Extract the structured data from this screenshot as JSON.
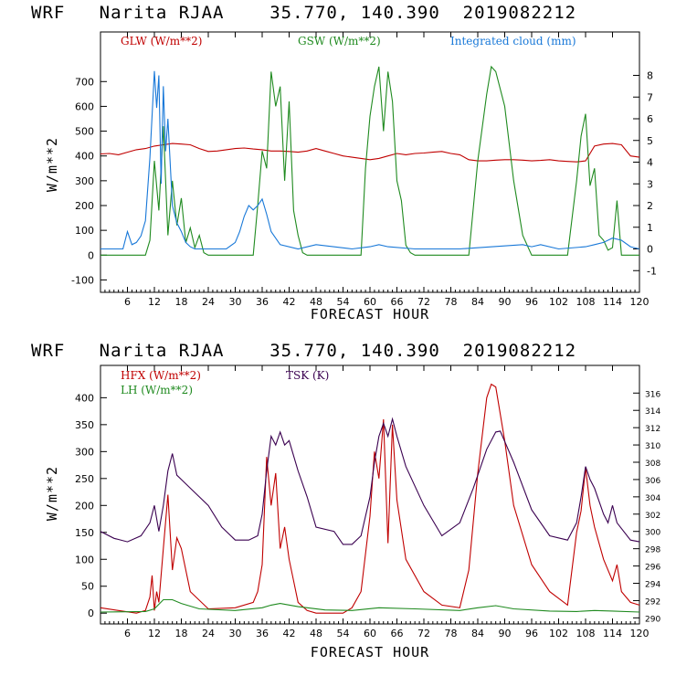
{
  "chart_data": [
    {
      "type": "line",
      "title": "WRF   Narita RJAA    35.770, 140.390  2019082212",
      "xlabel": "FORECAST HOUR",
      "ylabel": "W/m**2",
      "xlim": [
        0,
        120
      ],
      "ylim": [
        -150,
        900
      ],
      "y2lim": [
        -2,
        10
      ],
      "x_ticks": [
        "6",
        "12",
        "18",
        "24",
        "30",
        "36",
        "42",
        "48",
        "54",
        "60",
        "66",
        "72",
        "78",
        "84",
        "90",
        "96",
        "102",
        "108",
        "114",
        "120"
      ],
      "y_ticks": [
        "-100",
        "0",
        "100",
        "200",
        "300",
        "400",
        "500",
        "600",
        "700"
      ],
      "y2_ticks": [
        "-1",
        "0",
        "1",
        "2",
        "3",
        "4",
        "5",
        "6",
        "7",
        "8"
      ],
      "legend_position": "top",
      "colors": {
        "GLW": "#c00000",
        "GSW": "#1f8a1f",
        "CLOUD": "#1878d8"
      },
      "series": [
        {
          "name": "GLW (W/m**2)",
          "axis": "left",
          "color": "#c00000",
          "x": [
            0,
            2,
            4,
            6,
            8,
            10,
            12,
            14,
            16,
            18,
            20,
            22,
            24,
            26,
            28,
            30,
            32,
            34,
            36,
            38,
            40,
            42,
            44,
            46,
            48,
            50,
            52,
            54,
            56,
            58,
            60,
            62,
            64,
            66,
            68,
            70,
            72,
            74,
            76,
            78,
            80,
            82,
            84,
            86,
            88,
            90,
            92,
            94,
            96,
            98,
            100,
            102,
            104,
            106,
            108,
            110,
            112,
            114,
            116,
            118,
            120
          ],
          "values": [
            408,
            410,
            405,
            415,
            425,
            430,
            440,
            445,
            450,
            448,
            445,
            430,
            418,
            420,
            425,
            430,
            432,
            428,
            425,
            420,
            420,
            418,
            415,
            420,
            430,
            420,
            410,
            400,
            395,
            390,
            385,
            390,
            400,
            410,
            405,
            410,
            412,
            415,
            418,
            410,
            405,
            385,
            380,
            380,
            383,
            385,
            385,
            383,
            380,
            382,
            385,
            380,
            378,
            376,
            380,
            440,
            448,
            450,
            445,
            400,
            395
          ]
        },
        {
          "name": "GSW (W/m**2)",
          "axis": "left",
          "color": "#1f8a1f",
          "x": [
            0,
            10,
            11,
            12,
            13,
            14,
            15,
            16,
            17,
            18,
            19,
            20,
            21,
            22,
            23,
            24,
            34,
            35,
            36,
            37,
            38,
            39,
            40,
            41,
            42,
            43,
            44,
            45,
            46,
            58,
            59,
            60,
            61,
            62,
            63,
            64,
            65,
            66,
            67,
            68,
            69,
            70,
            82,
            84,
            86,
            87,
            88,
            90,
            92,
            94,
            96,
            104,
            106,
            107,
            108,
            109,
            110,
            111,
            112,
            113,
            114,
            115,
            116,
            120
          ],
          "values": [
            0,
            0,
            60,
            380,
            180,
            520,
            80,
            300,
            120,
            230,
            50,
            110,
            30,
            80,
            10,
            0,
            0,
            200,
            420,
            350,
            740,
            600,
            680,
            300,
            620,
            180,
            80,
            10,
            0,
            0,
            350,
            560,
            680,
            760,
            500,
            740,
            620,
            300,
            220,
            40,
            10,
            0,
            0,
            380,
            650,
            760,
            740,
            600,
            300,
            80,
            0,
            0,
            300,
            480,
            570,
            280,
            350,
            80,
            60,
            20,
            30,
            220,
            0,
            0
          ]
        },
        {
          "name": "Integrated cloud (mm)",
          "axis": "right",
          "color": "#1878d8",
          "x": [
            0,
            5,
            6,
            7,
            8,
            9,
            10,
            11,
            12,
            12.5,
            13,
            13.5,
            14,
            14.5,
            15,
            16,
            17,
            18,
            19,
            20,
            21,
            24,
            28,
            30,
            31,
            32,
            33,
            34,
            35,
            36,
            37,
            38,
            40,
            44,
            48,
            56,
            60,
            62,
            64,
            70,
            80,
            94,
            96,
            98,
            102,
            108,
            110,
            112,
            114,
            116,
            118,
            120
          ],
          "values": [
            0,
            0,
            0.8,
            0.2,
            0.3,
            0.6,
            1.3,
            4.2,
            8.2,
            6.5,
            8.0,
            3.0,
            7.5,
            4.5,
            6.0,
            2.0,
            1.2,
            0.8,
            0.3,
            0.1,
            0,
            0,
            0,
            0.3,
            0.8,
            1.5,
            2.0,
            1.8,
            2.0,
            2.3,
            1.6,
            0.8,
            0.2,
            0,
            0.2,
            0,
            0.1,
            0.2,
            0.1,
            0,
            0,
            0.2,
            0.1,
            0.2,
            0,
            0.1,
            0.2,
            0.3,
            0.5,
            0.4,
            0.1,
            0
          ]
        }
      ]
    },
    {
      "type": "line",
      "title": "WRF   Narita RJAA    35.770, 140.390  2019082212",
      "xlabel": "FORECAST HOUR",
      "ylabel": "W/m**2",
      "xlim": [
        0,
        120
      ],
      "ylim": [
        -20,
        460
      ],
      "y2lim": [
        289.3,
        319.2
      ],
      "x_ticks": [
        "6",
        "12",
        "18",
        "24",
        "30",
        "36",
        "42",
        "48",
        "54",
        "60",
        "66",
        "72",
        "78",
        "84",
        "90",
        "96",
        "102",
        "108",
        "114",
        "120"
      ],
      "y_ticks": [
        "0",
        "50",
        "100",
        "150",
        "200",
        "250",
        "300",
        "350",
        "400"
      ],
      "y2_ticks": [
        "290",
        "292",
        "294",
        "296",
        "298",
        "300",
        "302",
        "304",
        "306",
        "308",
        "310",
        "312",
        "314",
        "316"
      ],
      "legend_position": "top",
      "colors": {
        "HFX": "#c00000",
        "LH": "#1f8a1f",
        "TSK": "#3a0050"
      },
      "series": [
        {
          "name": "HFX (W/m**2)",
          "axis": "left",
          "color": "#c00000",
          "x": [
            0,
            4,
            8,
            10,
            11,
            11.5,
            12,
            12.5,
            13,
            14,
            15,
            16,
            17,
            18,
            20,
            24,
            30,
            34,
            35,
            36,
            37,
            38,
            39,
            40,
            41,
            42,
            43,
            44,
            46,
            48,
            54,
            56,
            58,
            60,
            61,
            62,
            63,
            64,
            65,
            66,
            68,
            72,
            76,
            80,
            82,
            84,
            86,
            87,
            88,
            90,
            92,
            96,
            100,
            104,
            106,
            107,
            108,
            109,
            110,
            112,
            114,
            115,
            116,
            118,
            120
          ],
          "values": [
            10,
            5,
            0,
            5,
            30,
            70,
            5,
            40,
            20,
            120,
            220,
            80,
            140,
            120,
            40,
            8,
            10,
            20,
            40,
            90,
            290,
            200,
            260,
            120,
            160,
            100,
            60,
            20,
            5,
            0,
            0,
            10,
            40,
            180,
            300,
            250,
            360,
            130,
            350,
            210,
            100,
            40,
            15,
            10,
            80,
            260,
            400,
            425,
            420,
            320,
            200,
            90,
            40,
            15,
            150,
            190,
            270,
            200,
            160,
            100,
            60,
            90,
            40,
            20,
            15
          ]
        },
        {
          "name": "LH (W/m**2)",
          "axis": "left",
          "color": "#1f8a1f",
          "x": [
            0,
            10,
            12,
            14,
            16,
            18,
            22,
            30,
            36,
            38,
            40,
            44,
            50,
            56,
            62,
            70,
            80,
            84,
            88,
            92,
            100,
            106,
            110,
            114,
            120
          ],
          "values": [
            2,
            3,
            8,
            25,
            25,
            18,
            8,
            5,
            10,
            15,
            18,
            12,
            6,
            5,
            10,
            8,
            5,
            10,
            14,
            8,
            4,
            3,
            5,
            4,
            2
          ]
        },
        {
          "name": "TSK (K)",
          "axis": "right",
          "color": "#3a0050",
          "x": [
            0,
            3,
            6,
            9,
            11,
            12,
            13,
            14,
            15,
            16,
            17,
            18,
            20,
            24,
            27,
            30,
            33,
            35,
            36,
            37,
            38,
            39,
            40,
            41,
            42,
            44,
            46,
            48,
            52,
            54,
            56,
            58,
            60,
            61,
            62,
            63,
            64,
            65,
            66,
            68,
            72,
            76,
            80,
            83,
            86,
            88,
            89,
            92,
            96,
            100,
            104,
            106,
            107,
            108,
            109,
            110,
            112,
            113,
            114,
            115,
            118,
            120
          ],
          "values": [
            300,
            299.2,
            298.8,
            299.5,
            301,
            303,
            300,
            303,
            307,
            309,
            306.5,
            306,
            305,
            303,
            300.5,
            299,
            299,
            299.5,
            302,
            307,
            311,
            310,
            311.5,
            310,
            310.5,
            307,
            304,
            300.5,
            300,
            298.5,
            298.5,
            299.5,
            304,
            308,
            311,
            312.5,
            311,
            313,
            311,
            307.5,
            303,
            299.5,
            301,
            305,
            309.5,
            311.5,
            311.6,
            308,
            302.5,
            299.5,
            299,
            301,
            304,
            307.5,
            306,
            305,
            302,
            301,
            303,
            301,
            299,
            298.8
          ]
        }
      ]
    }
  ]
}
